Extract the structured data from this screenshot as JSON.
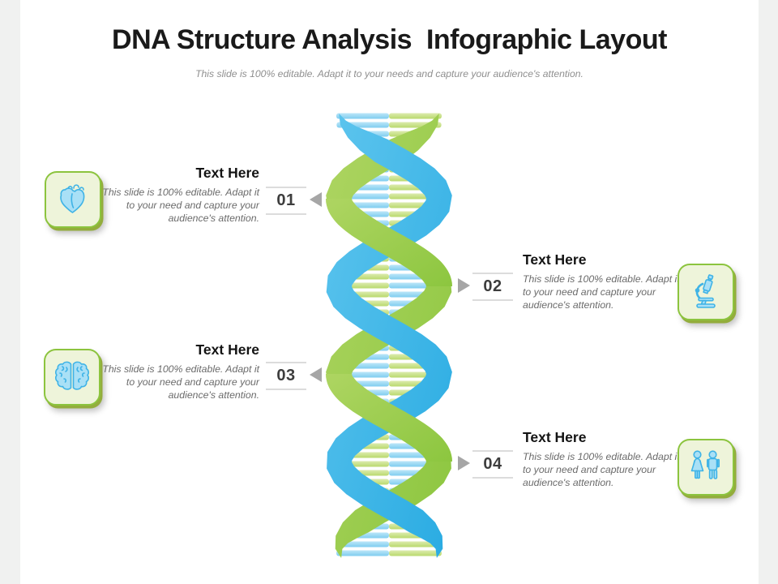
{
  "slide": {
    "title": "DNA Structure Analysis  Infographic Layout",
    "subtitle": "This slide is 100% editable. Adapt it to your needs and capture your audience's attention."
  },
  "items": [
    {
      "number": "01",
      "side": "left",
      "title": "Text Here",
      "description": "This slide is 100% editable. Adapt it to your need and capture your audience's attention.",
      "icon": "heart-icon"
    },
    {
      "number": "02",
      "side": "right",
      "title": "Text Here",
      "description": "This slide is 100% editable. Adapt it to your need and capture your audience's attention.",
      "icon": "microscope-icon"
    },
    {
      "number": "03",
      "side": "left",
      "title": "Text Here",
      "description": "This slide is 100% editable. Adapt it to your need and capture your audience's attention.",
      "icon": "brain-icon"
    },
    {
      "number": "04",
      "side": "right",
      "title": "Text Here",
      "description": "This slide is 100% editable. Adapt it to your need and capture your audience's attention.",
      "icon": "people-icon"
    }
  ],
  "colors": {
    "ribbon_blue": "#29abe2",
    "ribbon_blue_light": "#5ec5ee",
    "ribbon_green": "#8cc63f",
    "ribbon_green_light": "#aed562",
    "rung_blue": "#7fcdf0",
    "rung_blue_light": "#bce6f8",
    "rung_green": "#b9d96d",
    "rung_green_light": "#dcebae",
    "tile_fill": "#eef4da",
    "tile_border": "#8cc43e",
    "tile_shadow": "#93ad3c",
    "icon_stroke": "#3fb3e6",
    "icon_fill": "#a9e0f6",
    "arrow_gray": "#a6a6a6"
  }
}
